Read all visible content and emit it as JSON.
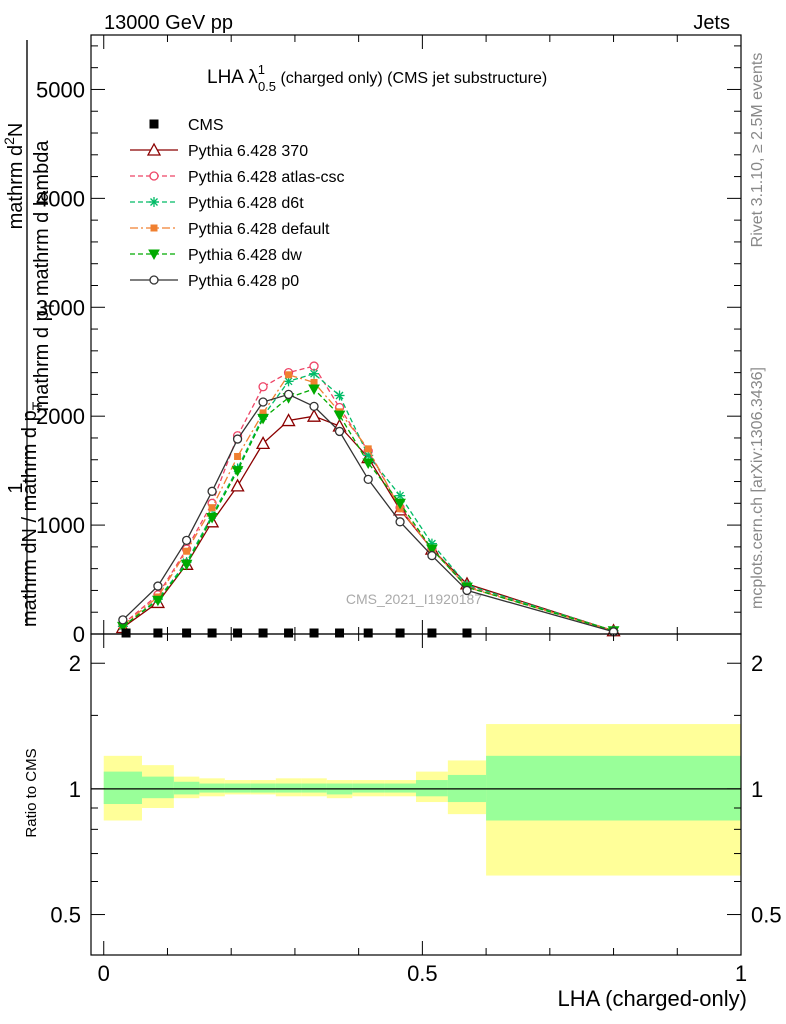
{
  "header": {
    "left": "13000 GeV pp",
    "right": "Jets"
  },
  "side_labels": {
    "rivet": "Rivet 3.1.10, ≥ 2.5M events",
    "mcplots": "mcplots.cern.ch [arXiv:1306.3436]"
  },
  "ratio_ylabel": "Ratio to CMS",
  "colors": {
    "cms": "#000000",
    "p370": "#8b0000",
    "atlas": "#ee4466",
    "d6t": "#00bb66",
    "default": "#f08030",
    "dw": "#00aa00",
    "p0": "#333333",
    "band_inner": "#99ff99",
    "band_outer": "#ffff99"
  },
  "chart_data": [
    {
      "type": "line",
      "title_main": "LHA λ",
      "title_sup": "1",
      "title_sub": "0.5",
      "title_rest": " (charged only) (CMS jet substructure)",
      "watermark": "CMS_2021_I1920187",
      "ylabel_top": "1",
      "ylabel_num": "mathrm d",
      "ylabel_numsup": "2",
      "ylabel_numtail": "N",
      "ylabel_den": "mathrm d p",
      "ylabel_densub": "T",
      "ylabel_dentail": " mathrm d lambda",
      "ylabel_bottom": "mathrm dN / mathrm d p",
      "ylabel_bottom_sub": "T",
      "ylim": [
        0,
        5500
      ],
      "xlim": [
        -0.02,
        1.0
      ],
      "y_ticks": [
        0,
        1000,
        2000,
        3000,
        4000,
        5000
      ],
      "y_tick_labels": [
        "0",
        "1000",
        "2000",
        "3000",
        "4000",
        "5000"
      ],
      "cms": {
        "name": "CMS",
        "x": [
          0.035,
          0.085,
          0.13,
          0.17,
          0.21,
          0.25,
          0.29,
          0.33,
          0.37,
          0.415,
          0.465,
          0.515,
          0.57
        ],
        "y": [
          0,
          0,
          0,
          0,
          0,
          0,
          0,
          0,
          0,
          0,
          0,
          0,
          0
        ]
      },
      "series": [
        {
          "name": "Pythia 6.428 370",
          "key": "p370",
          "marker": "triangle-open",
          "dash": "solid",
          "x": [
            0.03,
            0.085,
            0.13,
            0.17,
            0.21,
            0.25,
            0.29,
            0.33,
            0.37,
            0.415,
            0.465,
            0.515,
            0.57,
            0.8
          ],
          "y": [
            60,
            290,
            640,
            1030,
            1360,
            1750,
            1960,
            2000,
            1910,
            1620,
            1140,
            780,
            460,
            30
          ]
        },
        {
          "name": "Pythia 6.428 atlas-csc",
          "key": "atlas",
          "marker": "circle-open",
          "dash": "dashed",
          "x": [
            0.03,
            0.085,
            0.13,
            0.17,
            0.21,
            0.25,
            0.29,
            0.33,
            0.37,
            0.415,
            0.465,
            0.515,
            0.57,
            0.8
          ],
          "y": [
            90,
            360,
            780,
            1200,
            1820,
            2270,
            2400,
            2460,
            2080,
            1680,
            1160,
            780,
            440,
            30
          ]
        },
        {
          "name": "Pythia 6.428 d6t",
          "key": "d6t",
          "marker": "star",
          "dash": "dashed",
          "x": [
            0.03,
            0.085,
            0.13,
            0.17,
            0.21,
            0.25,
            0.29,
            0.33,
            0.37,
            0.415,
            0.465,
            0.515,
            0.57,
            0.8
          ],
          "y": [
            70,
            320,
            660,
            1090,
            1520,
            2000,
            2320,
            2390,
            2190,
            1640,
            1270,
            830,
            450,
            30
          ]
        },
        {
          "name": "Pythia 6.428 default",
          "key": "default",
          "marker": "square",
          "dash": "dashdot",
          "x": [
            0.03,
            0.085,
            0.13,
            0.17,
            0.21,
            0.25,
            0.29,
            0.33,
            0.37,
            0.415,
            0.465,
            0.515,
            0.57,
            0.8
          ],
          "y": [
            80,
            340,
            760,
            1160,
            1630,
            2030,
            2380,
            2310,
            2040,
            1700,
            1150,
            780,
            430,
            30
          ]
        },
        {
          "name": "Pythia 6.428 dw",
          "key": "dw",
          "marker": "triangle-down",
          "dash": "dashed",
          "x": [
            0.03,
            0.085,
            0.13,
            0.17,
            0.21,
            0.25,
            0.29,
            0.33,
            0.37,
            0.415,
            0.465,
            0.515,
            0.57,
            0.8
          ],
          "y": [
            70,
            310,
            640,
            1070,
            1500,
            1980,
            2170,
            2250,
            2010,
            1570,
            1200,
            780,
            430,
            30
          ]
        },
        {
          "name": "Pythia 6.428 p0",
          "key": "p0",
          "marker": "circle-open",
          "dash": "solid",
          "x": [
            0.03,
            0.085,
            0.13,
            0.17,
            0.21,
            0.25,
            0.29,
            0.33,
            0.37,
            0.415,
            0.465,
            0.515,
            0.57,
            0.8
          ],
          "y": [
            130,
            440,
            860,
            1310,
            1790,
            2130,
            2200,
            2090,
            1860,
            1420,
            1030,
            720,
            400,
            20
          ]
        }
      ]
    },
    {
      "type": "area",
      "ylabel": "Ratio to CMS",
      "xlabel": "LHA (charged-only)",
      "xlim": [
        -0.02,
        1.0
      ],
      "ylim_log": [
        0.4,
        2.35
      ],
      "log_scale": true,
      "x_ticks": [
        0,
        0.5,
        1
      ],
      "x_tick_labels": [
        "0",
        "0.5",
        "1"
      ],
      "y_ticks": [
        0.5,
        1,
        2
      ],
      "y_tick_labels": [
        "0.5",
        "1",
        "2"
      ],
      "bins": [
        {
          "lo": 0.0,
          "hi": 0.06,
          "inner": [
            0.92,
            1.1
          ],
          "outer": [
            0.84,
            1.2
          ]
        },
        {
          "lo": 0.06,
          "hi": 0.11,
          "inner": [
            0.95,
            1.07
          ],
          "outer": [
            0.9,
            1.14
          ]
        },
        {
          "lo": 0.11,
          "hi": 0.15,
          "inner": [
            0.97,
            1.04
          ],
          "outer": [
            0.95,
            1.07
          ]
        },
        {
          "lo": 0.15,
          "hi": 0.19,
          "inner": [
            0.98,
            1.03
          ],
          "outer": [
            0.96,
            1.06
          ]
        },
        {
          "lo": 0.19,
          "hi": 0.23,
          "inner": [
            0.98,
            1.03
          ],
          "outer": [
            0.97,
            1.05
          ]
        },
        {
          "lo": 0.23,
          "hi": 0.27,
          "inner": [
            0.98,
            1.03
          ],
          "outer": [
            0.97,
            1.05
          ]
        },
        {
          "lo": 0.27,
          "hi": 0.31,
          "inner": [
            0.98,
            1.03
          ],
          "outer": [
            0.96,
            1.06
          ]
        },
        {
          "lo": 0.31,
          "hi": 0.35,
          "inner": [
            0.98,
            1.03
          ],
          "outer": [
            0.96,
            1.06
          ]
        },
        {
          "lo": 0.35,
          "hi": 0.39,
          "inner": [
            0.97,
            1.03
          ],
          "outer": [
            0.95,
            1.05
          ]
        },
        {
          "lo": 0.39,
          "hi": 0.44,
          "inner": [
            0.98,
            1.03
          ],
          "outer": [
            0.96,
            1.05
          ]
        },
        {
          "lo": 0.44,
          "hi": 0.49,
          "inner": [
            0.98,
            1.03
          ],
          "outer": [
            0.96,
            1.05
          ]
        },
        {
          "lo": 0.49,
          "hi": 0.54,
          "inner": [
            0.96,
            1.05
          ],
          "outer": [
            0.93,
            1.1
          ]
        },
        {
          "lo": 0.54,
          "hi": 0.6,
          "inner": [
            0.93,
            1.08
          ],
          "outer": [
            0.87,
            1.17
          ]
        },
        {
          "lo": 0.6,
          "hi": 1.0,
          "inner": [
            0.84,
            1.2
          ],
          "outer": [
            0.62,
            1.43
          ]
        }
      ]
    }
  ]
}
